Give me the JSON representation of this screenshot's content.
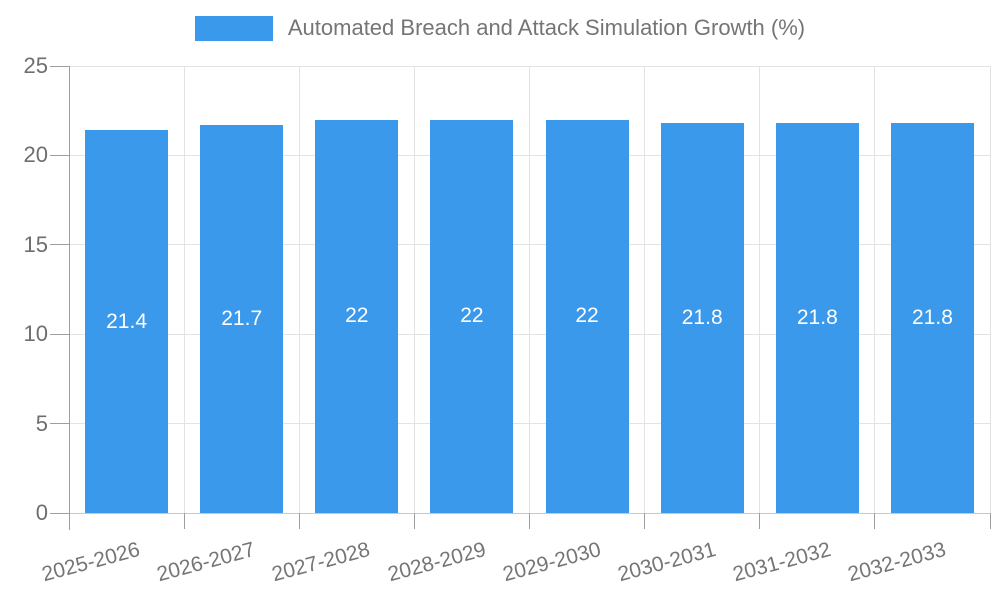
{
  "chart_data": {
    "type": "bar",
    "title": "Automated Breach and Attack Simulation Growth (%)",
    "legend": {
      "position": "top",
      "label": "Automated Breach and Attack Simulation Growth (%)"
    },
    "categories": [
      "2025-2026",
      "2026-2027",
      "2027-2028",
      "2028-2029",
      "2029-2030",
      "2030-2031",
      "2031-2032",
      "2032-2033"
    ],
    "series": [
      {
        "name": "Automated Breach and Attack Simulation Growth (%)",
        "values": [
          21.4,
          21.7,
          22,
          22,
          22,
          21.8,
          21.8,
          21.8
        ],
        "value_labels": [
          "21.4",
          "21.7",
          "22",
          "22",
          "22",
          "21.8",
          "21.8",
          "21.8"
        ]
      }
    ],
    "xlabel": "",
    "ylabel": "",
    "ylim": [
      0,
      25
    ],
    "yticks": [
      0,
      5,
      10,
      15,
      20,
      25
    ],
    "grid": true,
    "colors": {
      "bar": "#3B99EC",
      "legend_text": "#757575",
      "axis_text": "#6E6E6E",
      "category_text": "#757575",
      "grid": "#E3E3E3",
      "baseline": "#C9C9C9",
      "axis": "#9E9E9E",
      "value_label": "#FFFFFF",
      "background": "#FFFFFF"
    }
  }
}
